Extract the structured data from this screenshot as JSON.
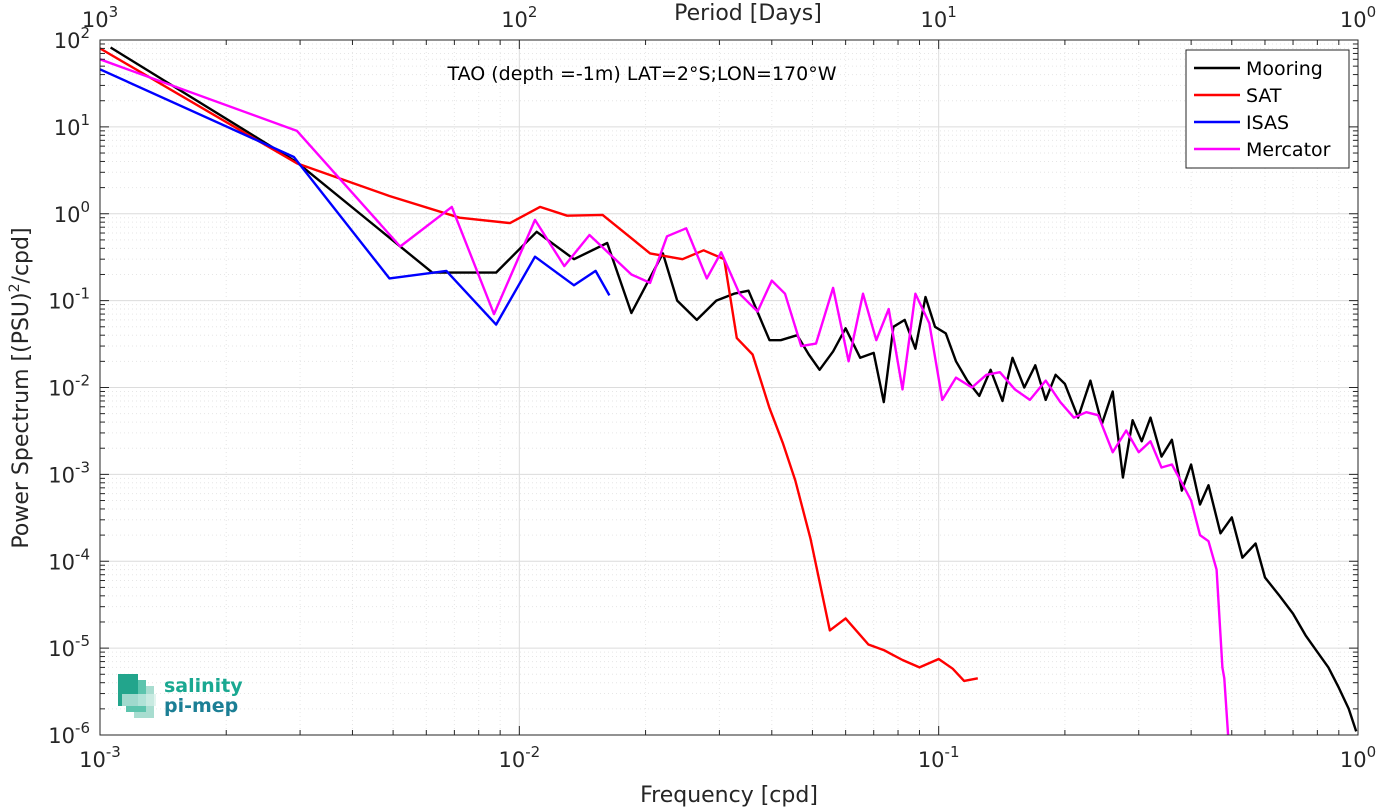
{
  "chart_data": {
    "type": "line",
    "title": "TAO (depth =-1m) LAT=2°S;LON=170°W",
    "xlabel": "Frequency [cpd]",
    "ylabel_main": "Power Spectrum [(PSU)",
    "ylabel_sup": "2",
    "ylabel_tail": "/cpd]",
    "top_xlabel": "Period [Days]",
    "xscale": "log",
    "yscale": "log",
    "xlim": [
      0.001,
      1
    ],
    "ylim": [
      1e-06,
      100
    ],
    "grid": true,
    "legend_position": "top-right",
    "x_ticks": [
      {
        "value": 0.001,
        "base": "10",
        "exp": "-3"
      },
      {
        "value": 0.01,
        "base": "10",
        "exp": "-2"
      },
      {
        "value": 0.1,
        "base": "10",
        "exp": "-1"
      },
      {
        "value": 1,
        "base": "10",
        "exp": "0"
      }
    ],
    "top_x_ticks": [
      {
        "value": 0.001,
        "base": "10",
        "exp": "3"
      },
      {
        "value": 0.01,
        "base": "10",
        "exp": "2"
      },
      {
        "value": 0.1,
        "base": "10",
        "exp": "1"
      },
      {
        "value": 1,
        "base": "10",
        "exp": "0"
      }
    ],
    "y_ticks": [
      {
        "value": 100,
        "base": "10",
        "exp": "2"
      },
      {
        "value": 10,
        "base": "10",
        "exp": "1"
      },
      {
        "value": 1,
        "base": "10",
        "exp": "0"
      },
      {
        "value": 0.1,
        "base": "10",
        "exp": "-1"
      },
      {
        "value": 0.01,
        "base": "10",
        "exp": "-2"
      },
      {
        "value": 0.001,
        "base": "10",
        "exp": "-3"
      },
      {
        "value": 0.0001,
        "base": "10",
        "exp": "-4"
      },
      {
        "value": 1e-05,
        "base": "10",
        "exp": "-5"
      },
      {
        "value": 1e-06,
        "base": "10",
        "exp": "-6"
      }
    ],
    "series": [
      {
        "name": "Mooring",
        "color": "#000000",
        "points": [
          [
            0.00106,
            82
          ],
          [
            0.00295,
            3.9
          ],
          [
            0.0062,
            0.21
          ],
          [
            0.0088,
            0.21
          ],
          [
            0.011,
            0.62
          ],
          [
            0.0135,
            0.3
          ],
          [
            0.0162,
            0.46
          ],
          [
            0.0185,
            0.072
          ],
          [
            0.022,
            0.35
          ],
          [
            0.0238,
            0.1
          ],
          [
            0.0265,
            0.06
          ],
          [
            0.0295,
            0.1
          ],
          [
            0.0325,
            0.12
          ],
          [
            0.0352,
            0.13
          ],
          [
            0.0395,
            0.035
          ],
          [
            0.042,
            0.035
          ],
          [
            0.046,
            0.04
          ],
          [
            0.049,
            0.024
          ],
          [
            0.052,
            0.016
          ],
          [
            0.056,
            0.026
          ],
          [
            0.06,
            0.048
          ],
          [
            0.065,
            0.022
          ],
          [
            0.07,
            0.025
          ],
          [
            0.074,
            0.0068
          ],
          [
            0.078,
            0.05
          ],
          [
            0.083,
            0.06
          ],
          [
            0.088,
            0.028
          ],
          [
            0.093,
            0.11
          ],
          [
            0.098,
            0.05
          ],
          [
            0.104,
            0.042
          ],
          [
            0.11,
            0.02
          ],
          [
            0.117,
            0.012
          ],
          [
            0.125,
            0.008
          ],
          [
            0.133,
            0.016
          ],
          [
            0.142,
            0.007
          ],
          [
            0.15,
            0.022
          ],
          [
            0.16,
            0.01
          ],
          [
            0.17,
            0.018
          ],
          [
            0.18,
            0.0072
          ],
          [
            0.19,
            0.014
          ],
          [
            0.2,
            0.011
          ],
          [
            0.215,
            0.0045
          ],
          [
            0.23,
            0.012
          ],
          [
            0.245,
            0.0038
          ],
          [
            0.26,
            0.009
          ],
          [
            0.275,
            0.00092
          ],
          [
            0.29,
            0.0042
          ],
          [
            0.305,
            0.0024
          ],
          [
            0.32,
            0.0045
          ],
          [
            0.34,
            0.0016
          ],
          [
            0.36,
            0.0025
          ],
          [
            0.38,
            0.00065
          ],
          [
            0.4,
            0.0013
          ],
          [
            0.42,
            0.00045
          ],
          [
            0.44,
            0.00075
          ],
          [
            0.47,
            0.00021
          ],
          [
            0.5,
            0.00032
          ],
          [
            0.53,
            0.00011
          ],
          [
            0.57,
            0.00016
          ],
          [
            0.6,
            6.5e-05
          ],
          [
            0.65,
            4e-05
          ],
          [
            0.7,
            2.5e-05
          ],
          [
            0.75,
            1.4e-05
          ],
          [
            0.8,
            9e-06
          ],
          [
            0.85,
            6e-06
          ],
          [
            0.9,
            3.5e-06
          ],
          [
            0.95,
            2e-06
          ],
          [
            0.99,
            1.1e-06
          ]
        ]
      },
      {
        "name": "SAT",
        "color": "#ff0000",
        "points": [
          [
            0.001,
            80
          ],
          [
            0.00295,
            3.8
          ],
          [
            0.0049,
            1.6
          ],
          [
            0.0072,
            0.9
          ],
          [
            0.0095,
            0.78
          ],
          [
            0.0112,
            1.2
          ],
          [
            0.013,
            0.95
          ],
          [
            0.0158,
            0.97
          ],
          [
            0.0205,
            0.35
          ],
          [
            0.0245,
            0.3
          ],
          [
            0.0275,
            0.38
          ],
          [
            0.0308,
            0.3
          ],
          [
            0.033,
            0.037
          ],
          [
            0.036,
            0.024
          ],
          [
            0.0395,
            0.0058
          ],
          [
            0.0425,
            0.0023
          ],
          [
            0.0455,
            0.00085
          ],
          [
            0.0495,
            0.00018
          ],
          [
            0.055,
            1.6e-05
          ],
          [
            0.06,
            2.2e-05
          ],
          [
            0.068,
            1.1e-05
          ],
          [
            0.074,
            9.5e-06
          ],
          [
            0.082,
            7.3e-06
          ],
          [
            0.09,
            6e-06
          ],
          [
            0.1,
            7.5e-06
          ],
          [
            0.108,
            5.8e-06
          ],
          [
            0.115,
            4.2e-06
          ],
          [
            0.124,
            4.5e-06
          ]
        ]
      },
      {
        "name": "ISAS",
        "color": "#0000ff",
        "points": [
          [
            0.001,
            46
          ],
          [
            0.0029,
            4.5
          ],
          [
            0.0049,
            0.18
          ],
          [
            0.0067,
            0.22
          ],
          [
            0.0088,
            0.053
          ],
          [
            0.0109,
            0.32
          ],
          [
            0.0135,
            0.15
          ],
          [
            0.0152,
            0.22
          ],
          [
            0.0164,
            0.115
          ]
        ]
      },
      {
        "name": "Mercator",
        "color": "#ff00ff",
        "points": [
          [
            0.001,
            60
          ],
          [
            0.00295,
            9
          ],
          [
            0.0052,
            0.42
          ],
          [
            0.0069,
            1.2
          ],
          [
            0.0087,
            0.07
          ],
          [
            0.0109,
            0.85
          ],
          [
            0.0128,
            0.25
          ],
          [
            0.0147,
            0.57
          ],
          [
            0.0185,
            0.2
          ],
          [
            0.0205,
            0.16
          ],
          [
            0.0225,
            0.55
          ],
          [
            0.025,
            0.68
          ],
          [
            0.028,
            0.18
          ],
          [
            0.0303,
            0.36
          ],
          [
            0.0335,
            0.12
          ],
          [
            0.037,
            0.075
          ],
          [
            0.04,
            0.17
          ],
          [
            0.043,
            0.12
          ],
          [
            0.047,
            0.03
          ],
          [
            0.051,
            0.032
          ],
          [
            0.056,
            0.14
          ],
          [
            0.061,
            0.02
          ],
          [
            0.066,
            0.12
          ],
          [
            0.071,
            0.035
          ],
          [
            0.076,
            0.08
          ],
          [
            0.082,
            0.0095
          ],
          [
            0.088,
            0.12
          ],
          [
            0.095,
            0.055
          ],
          [
            0.102,
            0.0072
          ],
          [
            0.11,
            0.013
          ],
          [
            0.12,
            0.01
          ],
          [
            0.13,
            0.014
          ],
          [
            0.14,
            0.015
          ],
          [
            0.152,
            0.0095
          ],
          [
            0.165,
            0.0072
          ],
          [
            0.18,
            0.012
          ],
          [
            0.195,
            0.0068
          ],
          [
            0.21,
            0.0045
          ],
          [
            0.225,
            0.0052
          ],
          [
            0.24,
            0.0048
          ],
          [
            0.26,
            0.0018
          ],
          [
            0.28,
            0.0032
          ],
          [
            0.3,
            0.0018
          ],
          [
            0.32,
            0.0024
          ],
          [
            0.34,
            0.0012
          ],
          [
            0.36,
            0.0013
          ],
          [
            0.38,
            0.0008
          ],
          [
            0.4,
            0.0005
          ],
          [
            0.42,
            0.0002
          ],
          [
            0.44,
            0.00017
          ],
          [
            0.46,
            8e-05
          ],
          [
            0.475,
            6e-06
          ],
          [
            0.48,
            4.5e-06
          ],
          [
            0.49,
            1e-06
          ]
        ]
      }
    ]
  },
  "logo": {
    "line1": "salinity",
    "line2": "pi-mep"
  }
}
